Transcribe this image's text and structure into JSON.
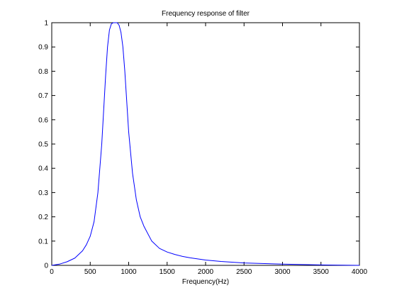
{
  "chart_data": {
    "type": "line",
    "title": "Frequency response of filter",
    "xlabel": "Frequency(Hz)",
    "ylabel": "",
    "xlim": [
      0,
      4000
    ],
    "ylim": [
      0,
      1
    ],
    "grid": false,
    "xticks": [
      0,
      500,
      1000,
      1500,
      2000,
      2500,
      3000,
      3500,
      4000
    ],
    "yticks": [
      0,
      0.1,
      0.2,
      0.3,
      0.4,
      0.5,
      0.6,
      0.7,
      0.8,
      0.9,
      1
    ],
    "xtick_labels": [
      "0",
      "500",
      "1000",
      "1500",
      "2000",
      "2500",
      "3000",
      "3500",
      "4000"
    ],
    "ytick_labels": [
      "0",
      "0.1",
      "0.2",
      "0.3",
      "0.4",
      "0.5",
      "0.6",
      "0.7",
      "0.8",
      "0.9",
      "1"
    ],
    "series": [
      {
        "color": "#0000ff",
        "x": [
          0,
          100,
          200,
          300,
          400,
          450,
          500,
          550,
          600,
          650,
          700,
          725,
          750,
          775,
          800,
          825,
          850,
          875,
          900,
          925,
          950,
          1000,
          1050,
          1100,
          1150,
          1200,
          1300,
          1400,
          1500,
          1600,
          1700,
          1800,
          2000,
          2200,
          2500,
          3000,
          3500,
          4000
        ],
        "y": [
          0,
          0.005,
          0.015,
          0.03,
          0.06,
          0.085,
          0.12,
          0.18,
          0.3,
          0.5,
          0.78,
          0.9,
          0.97,
          0.995,
          1.0,
          1.0,
          1.0,
          0.99,
          0.96,
          0.9,
          0.8,
          0.55,
          0.38,
          0.27,
          0.2,
          0.16,
          0.1,
          0.07,
          0.055,
          0.045,
          0.037,
          0.031,
          0.022,
          0.016,
          0.01,
          0.005,
          0.002,
          0.0
        ]
      }
    ]
  }
}
